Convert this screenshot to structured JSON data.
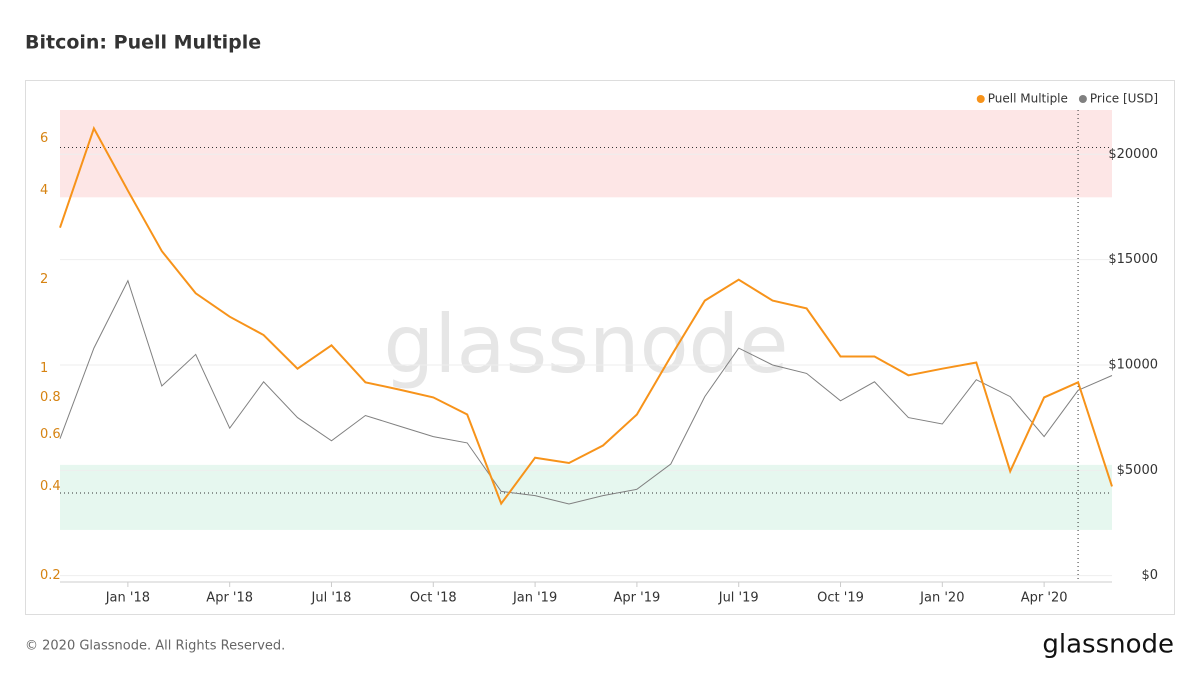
{
  "chart_data": {
    "type": "line",
    "title": "Bitcoin: Puell Multiple",
    "watermark": "glassnode",
    "footer": "© 2020 Glassnode. All Rights Reserved.",
    "logo": "glassnode",
    "x": [
      "2017-11",
      "2017-12",
      "2018-01",
      "2018-02",
      "2018-03",
      "2018-04",
      "2018-05",
      "2018-06",
      "2018-07",
      "2018-08",
      "2018-09",
      "2018-10",
      "2018-11",
      "2018-12",
      "2019-01",
      "2019-02",
      "2019-03",
      "2019-04",
      "2019-05",
      "2019-06",
      "2019-07",
      "2019-08",
      "2019-09",
      "2019-10",
      "2019-11",
      "2019-12",
      "2020-01",
      "2020-02",
      "2020-03",
      "2020-04",
      "2020-05",
      "2020-06"
    ],
    "xlim": [
      "2017-11",
      "2020-06"
    ],
    "xticks": [
      {
        "value": "2018-01",
        "label": "Jan '18"
      },
      {
        "value": "2018-04",
        "label": "Apr '18"
      },
      {
        "value": "2018-07",
        "label": "Jul '18"
      },
      {
        "value": "2018-10",
        "label": "Oct '18"
      },
      {
        "value": "2019-01",
        "label": "Jan '19"
      },
      {
        "value": "2019-04",
        "label": "Apr '19"
      },
      {
        "value": "2019-07",
        "label": "Jul '19"
      },
      {
        "value": "2019-10",
        "label": "Oct '19"
      },
      {
        "value": "2020-01",
        "label": "Jan '20"
      },
      {
        "value": "2020-04",
        "label": "Apr '20"
      }
    ],
    "y_scale": "log",
    "ylim": [
      0.19,
      7.5
    ],
    "yticks": [
      0.2,
      0.4,
      0.6,
      0.8,
      1,
      2,
      4,
      6
    ],
    "y2lim": [
      -300,
      22100
    ],
    "y2ticks": [
      {
        "value": 0,
        "label": "$0"
      },
      {
        "value": 5000,
        "label": "$5000"
      },
      {
        "value": 10000,
        "label": "$10000"
      },
      {
        "value": 15000,
        "label": "$15000"
      },
      {
        "value": 20000,
        "label": "$20000"
      }
    ],
    "bands": [
      {
        "range": [
          3.8,
          7.5
        ],
        "color": "#fde6e6"
      },
      {
        "range": [
          0.285,
          0.473
        ],
        "color": "#e6f7ef"
      }
    ],
    "reference_lines": [
      5.6,
      0.38
    ],
    "marker_x": "2020-05",
    "grid": true,
    "legend": "top-right",
    "series": [
      {
        "name": "Puell Multiple",
        "color": "#f7931a",
        "axis": "y",
        "values": [
          3.0,
          6.5,
          4.0,
          2.5,
          1.8,
          1.5,
          1.3,
          1.0,
          1.2,
          0.9,
          0.85,
          0.8,
          0.7,
          0.35,
          0.5,
          0.48,
          0.55,
          0.7,
          1.1,
          1.7,
          2.0,
          1.7,
          1.6,
          1.1,
          1.1,
          0.95,
          1.0,
          1.05,
          0.45,
          0.8,
          0.9,
          0.4
        ]
      },
      {
        "name": "Price [USD]",
        "color": "#808080",
        "axis": "y2",
        "values": [
          6500,
          10800,
          14000,
          9000,
          10500,
          7000,
          9200,
          7500,
          6400,
          7600,
          7100,
          6600,
          6300,
          4000,
          3800,
          3400,
          3800,
          4100,
          5300,
          8500,
          10800,
          10000,
          9600,
          8300,
          9200,
          7500,
          7200,
          9300,
          8500,
          6600,
          8800,
          9500
        ]
      }
    ]
  }
}
